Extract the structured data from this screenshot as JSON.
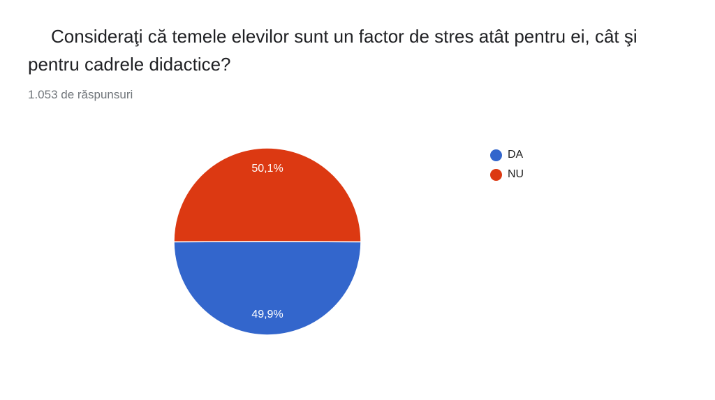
{
  "question": {
    "title": "Consideraţi că temele elevilor sunt un factor de stres atât pentru ei, cât şi pentru cadrele didactice?",
    "response_count": "1.053 de răspunsuri"
  },
  "chart_data": {
    "type": "pie",
    "title": "Consideraţi că temele elevilor sunt un factor de stres atât pentru ei, cât şi pentru cadrele didactice?",
    "slices": [
      {
        "label": "DA",
        "value": 49.9,
        "display": "49,9%",
        "color": "#3366cc"
      },
      {
        "label": "NU",
        "value": 50.1,
        "display": "50,1%",
        "color": "#dc3912"
      }
    ],
    "legend_position": "right"
  }
}
